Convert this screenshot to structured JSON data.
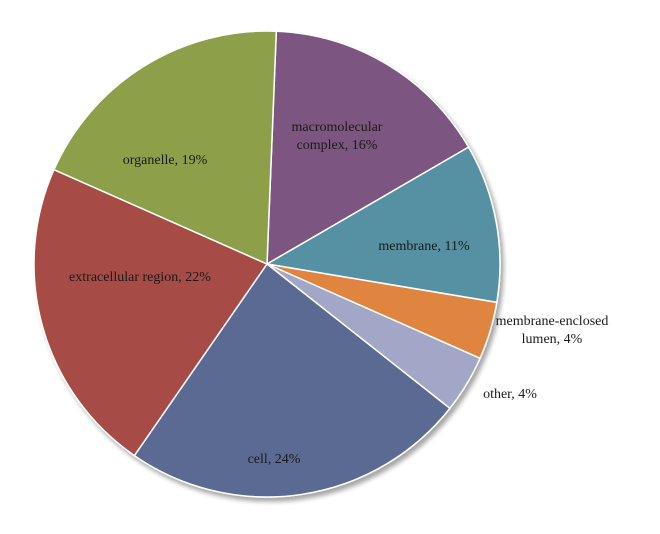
{
  "chart_data": {
    "type": "pie",
    "title": "",
    "slices": [
      {
        "label": "macromolecular complex",
        "value": 16,
        "color": "#7b5480",
        "text_lines": [
          "macromolecular",
          "complex, 16%"
        ]
      },
      {
        "label": "membrane",
        "value": 11,
        "color": "#5591a2",
        "text_lines": [
          "membrane, 11%"
        ]
      },
      {
        "label": "membrane-enclosed lumen",
        "value": 4,
        "color": "#e08540",
        "text_lines": [
          "membrane-enclosed",
          "lumen, 4%"
        ]
      },
      {
        "label": "other",
        "value": 4,
        "color": "#a3a7c7",
        "text_lines": [
          "other, 4%"
        ]
      },
      {
        "label": "cell",
        "value": 24,
        "color": "#5a6a93",
        "text_lines": [
          "cell, 24%"
        ]
      },
      {
        "label": "extracellular region",
        "value": 22,
        "color": "#a64b44",
        "text_lines": [
          "extracellular region, 22%"
        ]
      },
      {
        "label": "organelle",
        "value": 19,
        "color": "#8da04a",
        "text_lines": [
          "organelle, 19%"
        ]
      }
    ]
  }
}
